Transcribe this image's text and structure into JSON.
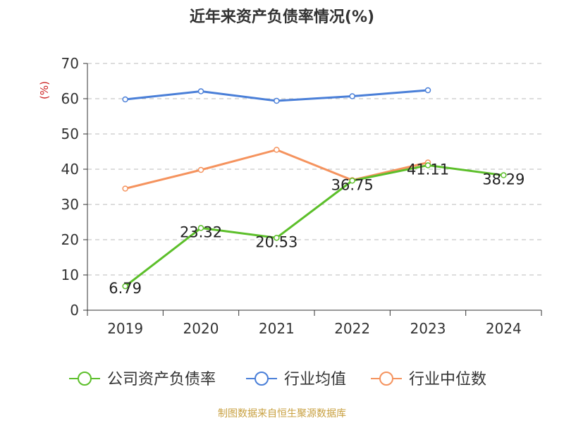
{
  "chart_data": {
    "type": "line",
    "title": "近年来资产负债率情况(%)",
    "ylabel": "(%)",
    "categories": [
      "2019",
      "2020",
      "2021",
      "2022",
      "2023",
      "2024"
    ],
    "yticks": [
      "0",
      "10",
      "20",
      "30",
      "40",
      "50",
      "60",
      "70"
    ],
    "ylim": [
      0,
      70
    ],
    "grid": true,
    "legend_position": "bottom",
    "series": [
      {
        "name": "公司资产负债率",
        "color": "#5cbf2a",
        "values": [
          6.79,
          23.32,
          20.53,
          36.75,
          41.11,
          38.29
        ],
        "labels": [
          "6.79",
          "23.32",
          "20.53",
          "36.75",
          "41.11",
          "38.29"
        ]
      },
      {
        "name": "行业均值",
        "color": "#4a7fd8",
        "values": [
          59.8,
          62.1,
          59.4,
          60.7,
          62.4,
          null
        ]
      },
      {
        "name": "行业中位数",
        "color": "#f5935e",
        "values": [
          34.5,
          39.8,
          45.5,
          36.9,
          41.9,
          null
        ]
      }
    ]
  },
  "footer": {
    "source": "制图数据来自恒生聚源数据库"
  }
}
